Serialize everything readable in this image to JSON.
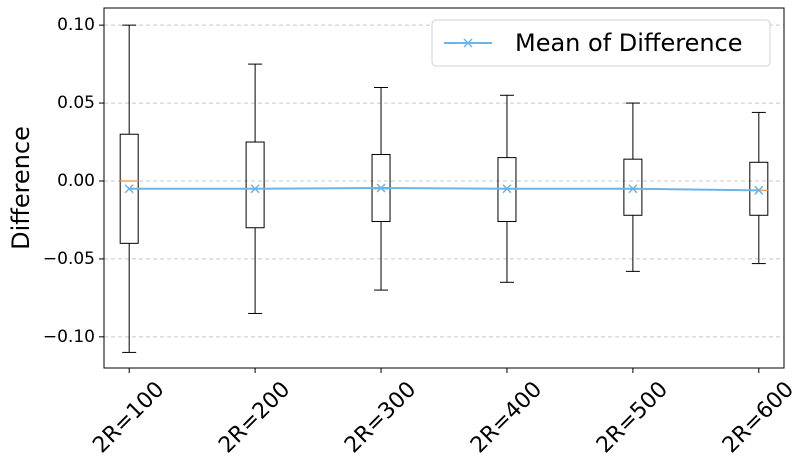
{
  "chart_data": {
    "type": "box",
    "y_label": "Difference",
    "categories": [
      "2R=100",
      "2R=200",
      "2R=300",
      "2R=400",
      "2R=500",
      "2R=600"
    ],
    "boxes": {
      "whislo": [
        -0.11,
        -0.085,
        -0.07,
        -0.065,
        -0.058,
        -0.053
      ],
      "q1": [
        -0.04,
        -0.03,
        -0.026,
        -0.026,
        -0.022,
        -0.022
      ],
      "median": [
        0.0,
        -0.005,
        -0.005,
        -0.005,
        -0.005,
        -0.006
      ],
      "q3": [
        0.03,
        0.025,
        0.017,
        0.015,
        0.014,
        0.012
      ],
      "whishi": [
        0.1,
        0.075,
        0.06,
        0.055,
        0.05,
        0.044
      ],
      "box_color": "#000000",
      "median_color": "#f5a05a"
    },
    "series": [
      {
        "name": "Mean of Difference",
        "color": "#6cb4e4",
        "values": [
          -0.005,
          -0.005,
          -0.0045,
          -0.005,
          -0.005,
          -0.006
        ]
      }
    ],
    "ylim": [
      -0.12,
      0.111
    ],
    "yticks": [
      {
        "value": 0.1,
        "label": "0.10"
      },
      {
        "value": 0.05,
        "label": "0.05"
      },
      {
        "value": 0,
        "label": "0.00"
      },
      {
        "value": -0.05,
        "label": "−0.05"
      },
      {
        "value": -0.1,
        "label": "−0.10"
      }
    ],
    "grid": true,
    "legend": "upper right"
  }
}
